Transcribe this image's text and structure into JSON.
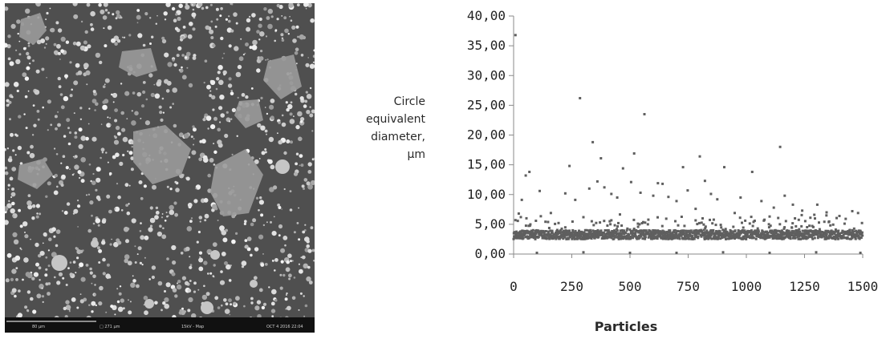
{
  "sem_image": {
    "scale_bar_label": "80 µm",
    "field_width": "□ 271 µm",
    "detector": "15kV - Map",
    "date": "OCT 4 2016 22:04"
  },
  "chart_data": {
    "type": "scatter",
    "title": "",
    "xlabel": "Particles",
    "ylabel": "Circle\nequivalent\ndiameter,\nµm",
    "xlim": [
      0,
      1500
    ],
    "ylim": [
      0,
      40
    ],
    "x_ticks": [
      0,
      250,
      500,
      750,
      1000,
      1250,
      1500
    ],
    "y_ticks": [
      "0,00",
      "5,00",
      "10,00",
      "15,00",
      "20,00",
      "25,00",
      "30,00",
      "35,00",
      "40,00"
    ],
    "grid": false,
    "marker_color": "#5f5f5f",
    "points": [
      [
        8,
        36.8
      ],
      [
        22,
        6.8
      ],
      [
        35,
        9.1
      ],
      [
        52,
        13.2
      ],
      [
        68,
        13.8
      ],
      [
        112,
        10.6
      ],
      [
        160,
        6.9
      ],
      [
        222,
        10.2
      ],
      [
        240,
        14.8
      ],
      [
        265,
        9.1
      ],
      [
        285,
        26.2
      ],
      [
        300,
        6.2
      ],
      [
        325,
        11.0
      ],
      [
        340,
        18.8
      ],
      [
        360,
        12.2
      ],
      [
        375,
        16.1
      ],
      [
        390,
        11.2
      ],
      [
        420,
        10.1
      ],
      [
        445,
        9.5
      ],
      [
        470,
        14.4
      ],
      [
        505,
        12.1
      ],
      [
        518,
        16.9
      ],
      [
        545,
        10.3
      ],
      [
        562,
        23.5
      ],
      [
        600,
        9.8
      ],
      [
        620,
        11.9
      ],
      [
        640,
        11.8
      ],
      [
        665,
        9.6
      ],
      [
        700,
        8.9
      ],
      [
        728,
        14.6
      ],
      [
        748,
        10.7
      ],
      [
        782,
        7.6
      ],
      [
        800,
        16.4
      ],
      [
        822,
        12.3
      ],
      [
        848,
        10.1
      ],
      [
        875,
        9.2
      ],
      [
        905,
        14.6
      ],
      [
        950,
        6.9
      ],
      [
        975,
        9.5
      ],
      [
        1025,
        13.8
      ],
      [
        1065,
        8.9
      ],
      [
        1100,
        6.3
      ],
      [
        1118,
        7.8
      ],
      [
        1145,
        18.0
      ],
      [
        1165,
        9.8
      ],
      [
        1200,
        8.3
      ],
      [
        1240,
        7.3
      ],
      [
        1275,
        6.1
      ],
      [
        1305,
        8.3
      ],
      [
        1345,
        7.0
      ],
      [
        1400,
        6.4
      ],
      [
        1455,
        7.2
      ],
      [
        1480,
        6.9
      ],
      [
        100,
        0.2
      ],
      [
        300,
        0.3
      ],
      [
        500,
        0.2
      ],
      [
        700,
        0.2
      ],
      [
        900,
        0.3
      ],
      [
        1100,
        0.2
      ],
      [
        1300,
        0.3
      ],
      [
        1490,
        0.2
      ]
    ]
  }
}
